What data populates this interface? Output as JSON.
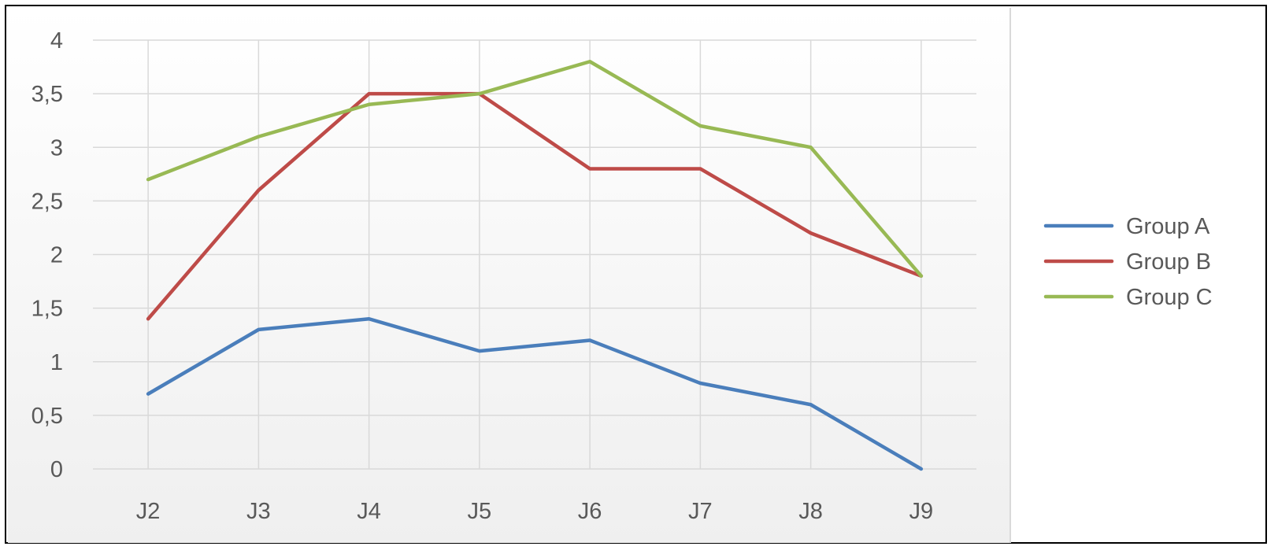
{
  "chart_data": {
    "type": "line",
    "title": "",
    "xlabel": "",
    "ylabel": "",
    "categories": [
      "J2",
      "J3",
      "J4",
      "J5",
      "J6",
      "J7",
      "J8",
      "J9"
    ],
    "ylim": [
      0,
      4
    ],
    "ytick_values": [
      0,
      0.5,
      1,
      1.5,
      2,
      2.5,
      3,
      3.5,
      4
    ],
    "ytick_labels": [
      "0",
      "0,5",
      "1",
      "1,5",
      "2",
      "2,5",
      "3",
      "3,5",
      "4"
    ],
    "grid": true,
    "legend_position": "right",
    "series": [
      {
        "name": "Group A",
        "color": "#4a7ebb",
        "values": [
          0.7,
          1.3,
          1.4,
          1.1,
          1.2,
          0.8,
          0.6,
          0.0
        ]
      },
      {
        "name": "Group B",
        "color": "#be4b48",
        "values": [
          1.4,
          2.6,
          3.5,
          3.5,
          2.8,
          2.8,
          2.2,
          1.8
        ]
      },
      {
        "name": "Group C",
        "color": "#98b954",
        "values": [
          2.7,
          3.1,
          3.4,
          3.5,
          3.8,
          3.2,
          3.0,
          1.8
        ]
      }
    ]
  }
}
